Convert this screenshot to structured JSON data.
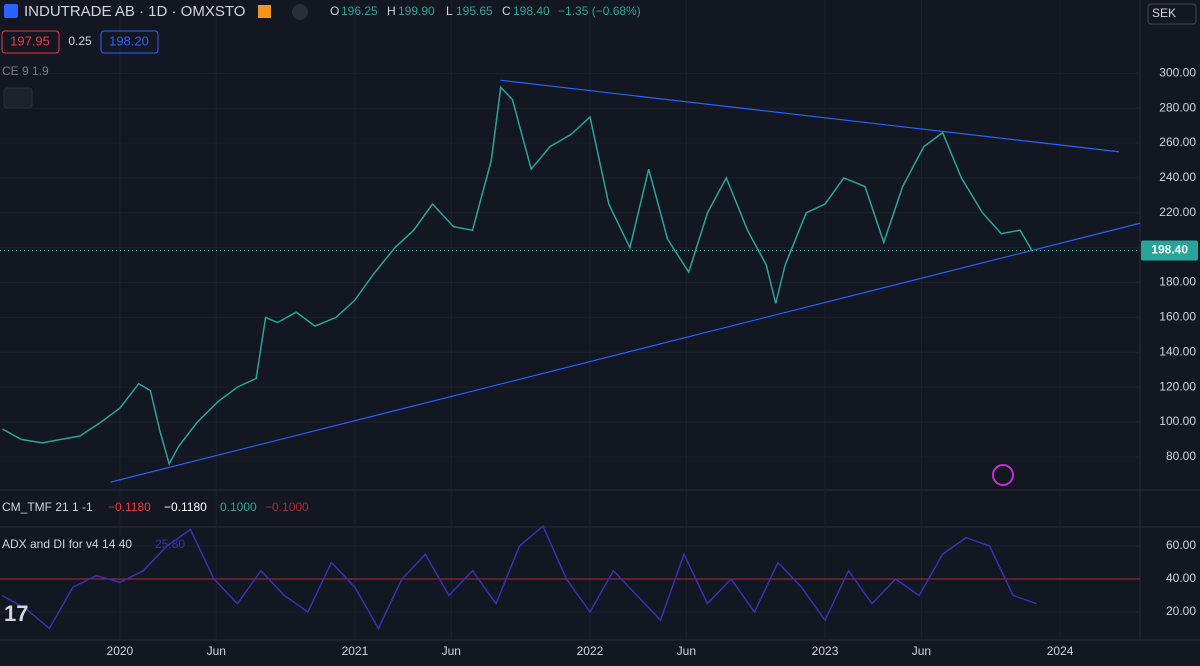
{
  "header": {
    "symbol": "INDUTRADE AB · 1D · OMXSTO",
    "o_label": "O",
    "o": "196.25",
    "h_label": "H",
    "h": "199.90",
    "l_label": "L",
    "l": "195.65",
    "c_label": "C",
    "c": "198.40",
    "change": "−1.35 (−0.68%)",
    "bid": "197.95",
    "spread": "0.25",
    "ask": "198.20",
    "ce": "CE 9 1.9",
    "currency": "SEK"
  },
  "tmf": {
    "label": "CM_TMF 21 1 -1",
    "v1": "−0.1180",
    "v2": "−0.1180",
    "v3": "0.1000",
    "v4": "−0.1000"
  },
  "adx_label": {
    "label": "ADX and DI for v4 14 40",
    "v": "25.80"
  },
  "chart_data": [
    {
      "type": "line",
      "color": "#26a69a",
      "x": [
        2019.5,
        2019.58,
        2019.67,
        2019.75,
        2019.83,
        2019.92,
        2020.0,
        2020.08,
        2020.13,
        2020.17,
        2020.21,
        2020.25,
        2020.33,
        2020.42,
        2020.5,
        2020.58,
        2020.62,
        2020.67,
        2020.75,
        2020.83,
        2020.92,
        2021.0,
        2021.08,
        2021.17,
        2021.25,
        2021.33,
        2021.42,
        2021.5,
        2021.58,
        2021.62,
        2021.67,
        2021.75,
        2021.83,
        2021.92,
        2022.0,
        2022.04,
        2022.08,
        2022.17,
        2022.25,
        2022.33,
        2022.42,
        2022.5,
        2022.58,
        2022.67,
        2022.75,
        2022.79,
        2022.83,
        2022.92,
        2023.0,
        2023.08,
        2023.17,
        2023.25,
        2023.33,
        2023.42,
        2023.5,
        2023.58,
        2023.67,
        2023.75,
        2023.83,
        2023.88
      ],
      "values": [
        96,
        90,
        88,
        90,
        92,
        100,
        108,
        122,
        118,
        95,
        76,
        86,
        100,
        112,
        120,
        125,
        160,
        157,
        163,
        155,
        160,
        170,
        185,
        200,
        210,
        225,
        212,
        210,
        250,
        292,
        285,
        245,
        258,
        265,
        275,
        250,
        225,
        200,
        245,
        205,
        186,
        220,
        240,
        210,
        190,
        168,
        190,
        220,
        225,
        240,
        235,
        203,
        235,
        258,
        266,
        240,
        220,
        208,
        210,
        198.4
      ],
      "xlim": [
        2019.49,
        2024.34
      ],
      "xticks": [
        {
          "value": 2020,
          "label": "2020"
        },
        {
          "value": 2020.41,
          "label": "Jun"
        },
        {
          "value": 2021,
          "label": "2021"
        },
        {
          "value": 2021.41,
          "label": "Jun"
        },
        {
          "value": 2022,
          "label": "2022"
        },
        {
          "value": 2022.41,
          "label": "Jun"
        },
        {
          "value": 2023,
          "label": "2023"
        },
        {
          "value": 2023.41,
          "label": "Jun"
        },
        {
          "value": 2024,
          "label": "2024"
        }
      ],
      "ylim": [
        61,
        326
      ],
      "yticks": [
        {
          "value": 80,
          "label": "80.00"
        },
        {
          "value": 100,
          "label": "100.00"
        },
        {
          "value": 120,
          "label": "120.00"
        },
        {
          "value": 140,
          "label": "140.00"
        },
        {
          "value": 160,
          "label": "160.00"
        },
        {
          "value": 180,
          "label": "180.00"
        },
        {
          "value": 200,
          "label": "200.00"
        },
        {
          "value": 220,
          "label": "220.00"
        },
        {
          "value": 240,
          "label": "240.00"
        },
        {
          "value": 260,
          "label": "260.00"
        },
        {
          "value": 280,
          "label": "280.00"
        },
        {
          "value": 300,
          "label": "300.00"
        }
      ],
      "last_price": {
        "value": 198.4,
        "label": "198.40"
      },
      "trendlines": [
        {
          "color": "#2962ff",
          "x": [
            2021.62,
            2024.25
          ],
          "y": [
            296,
            255
          ]
        },
        {
          "color": "#2962ff",
          "x": [
            2019.96,
            2024.34
          ],
          "y": [
            65.5,
            214
          ]
        }
      ]
    },
    {
      "type": "line",
      "color": "#3d2fb0",
      "x": [
        2019.5,
        2019.6,
        2019.7,
        2019.8,
        2019.9,
        2020.0,
        2020.1,
        2020.2,
        2020.3,
        2020.4,
        2020.5,
        2020.6,
        2020.7,
        2020.8,
        2020.9,
        2021.0,
        2021.1,
        2021.2,
        2021.3,
        2021.4,
        2021.5,
        2021.6,
        2021.7,
        2021.8,
        2021.9,
        2022.0,
        2022.1,
        2022.2,
        2022.3,
        2022.4,
        2022.5,
        2022.6,
        2022.7,
        2022.8,
        2022.9,
        2023.0,
        2023.1,
        2023.2,
        2023.3,
        2023.4,
        2023.5,
        2023.6,
        2023.7,
        2023.8,
        2023.9
      ],
      "values": [
        30,
        22,
        10,
        35,
        42,
        38,
        45,
        60,
        70,
        40,
        25,
        45,
        30,
        20,
        50,
        35,
        10,
        40,
        55,
        30,
        45,
        25,
        60,
        72,
        40,
        20,
        45,
        30,
        15,
        55,
        25,
        40,
        20,
        50,
        35,
        15,
        45,
        25,
        40,
        30,
        55,
        65,
        60,
        30,
        25
      ],
      "level": 40,
      "level_color": "#b22833",
      "ylim": [
        3,
        71.5
      ],
      "yticks": [
        {
          "value": 20,
          "label": "20.00"
        },
        {
          "value": 40,
          "label": "40.00"
        },
        {
          "value": 60,
          "label": "60.00"
        }
      ]
    }
  ]
}
